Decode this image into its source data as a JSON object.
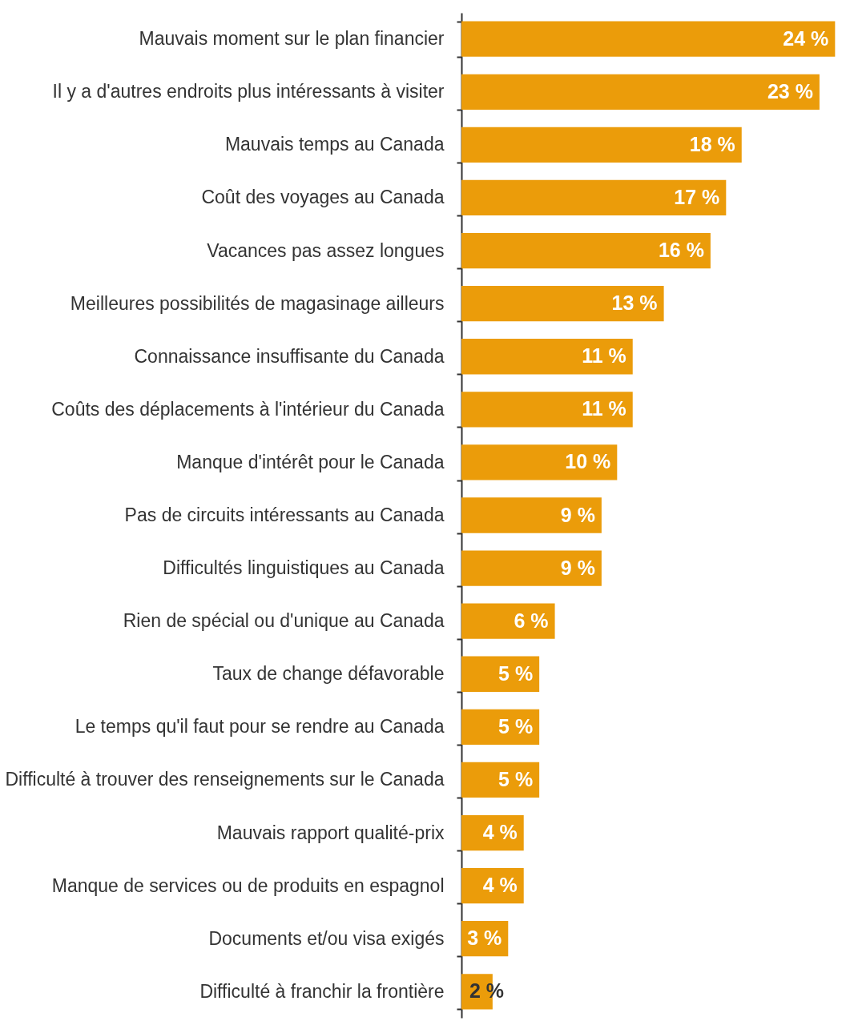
{
  "chart_data": {
    "type": "bar",
    "orientation": "horizontal",
    "color": "#eb9c0a",
    "categories": [
      "Mauvais moment sur le plan financier",
      "Il y a d'autres endroits plus intéressants à visiter",
      "Mauvais temps au Canada",
      "Coût des voyages au Canada",
      "Vacances pas assez longues",
      "Meilleures possibilités de magasinage ailleurs",
      "Connaissance insuffisante du Canada",
      "Coûts des déplacements à l'intérieur du Canada",
      "Manque d'intérêt pour le Canada",
      "Pas de circuits intéressants au Canada",
      "Difficultés linguistiques au Canada",
      "Rien de spécial ou d'unique au Canada",
      "Taux de change défavorable",
      "Le temps qu'il faut pour se rendre au Canada",
      "Difficulté à trouver des renseignements sur le Canada",
      "Mauvais rapport qualité-prix",
      "Manque de services ou de produits en espagnol",
      "Documents et/ou visa exigés",
      "Difficulté à franchir la frontière"
    ],
    "values": [
      24,
      23,
      18,
      17,
      16,
      13,
      11,
      11,
      10,
      9,
      9,
      6,
      5,
      5,
      5,
      4,
      4,
      3,
      2
    ],
    "value_labels": [
      "24 %",
      "23 %",
      "18 %",
      "17 %",
      "16 %",
      "13 %",
      "11 %",
      "11 %",
      "10 %",
      "9 %",
      "9 %",
      "6 %",
      "5 %",
      "5 %",
      "5 %",
      "4 %",
      "4 %",
      "3 %",
      "2 %"
    ],
    "grid": false
  }
}
